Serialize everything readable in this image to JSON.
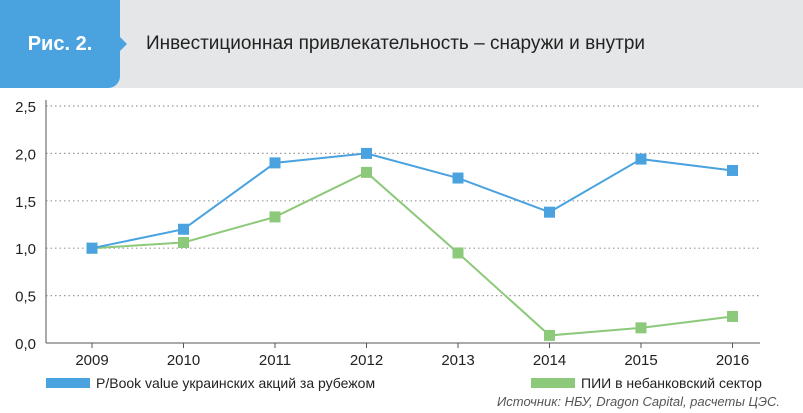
{
  "header": {
    "badge": "Рис. 2.",
    "title": "Инвестиционная привлекательность – снаружи и внутри"
  },
  "chart_data": {
    "type": "line",
    "title": "Инвестиционная привлекательность – снаружи и внутри",
    "categories": [
      "2009",
      "2010",
      "2011",
      "2012",
      "2013",
      "2014",
      "2015",
      "2016"
    ],
    "ylim": [
      0,
      2.5
    ],
    "yticks": [
      0,
      0.5,
      1.0,
      1.5,
      2.0,
      2.5
    ],
    "ytick_labels": [
      "0,0",
      "0,5",
      "1,0",
      "1,5",
      "2,0",
      "2,5"
    ],
    "grid": "horizontal dotted",
    "legend_position": "bottom",
    "series": [
      {
        "name": "P/Book value украинских акций за рубежом",
        "color": "#4aa3df",
        "values": [
          1.0,
          1.2,
          1.9,
          2.0,
          1.74,
          1.38,
          1.94,
          1.82
        ]
      },
      {
        "name": "ПИИ в небанковский сектор",
        "color": "#8cc97a",
        "values": [
          1.0,
          1.06,
          1.33,
          1.8,
          0.95,
          0.08,
          0.16,
          0.28
        ]
      }
    ]
  },
  "source": "Источник: НБУ, Dragon Capital, расчеты ЦЭС."
}
